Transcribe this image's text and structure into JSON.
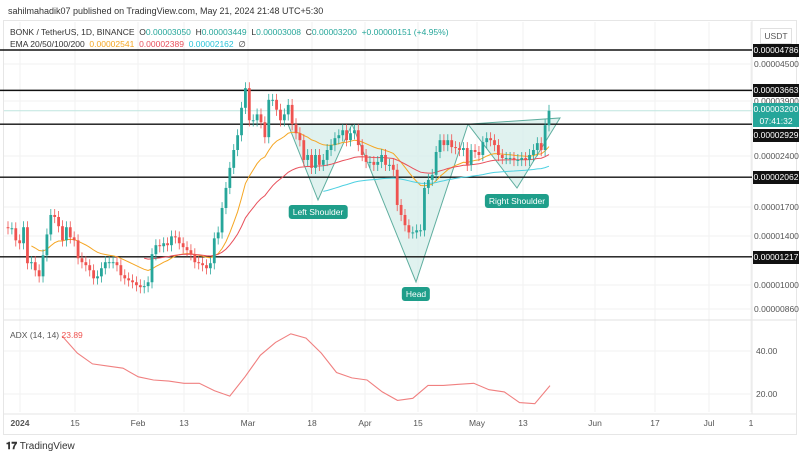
{
  "header": {
    "published": "sahilmahadik07 published on TradingView.com, May 21, 2024 21:48 UTC+5:30"
  },
  "legend": {
    "symbol": "BONK / TetherUS, 1D, BINANCE",
    "open_label": "O",
    "open": "0.00003050",
    "high_label": "H",
    "high": "0.00003449",
    "low_label": "L",
    "low": "0.00003008",
    "close_label": "C",
    "close": "0.00003200",
    "change": "+0.00000151 (+4.95%)",
    "ema_label": "EMA 20/50/100/200",
    "ema20": "0.00002541",
    "ema50": "0.00002389",
    "ema100": "0.00002162",
    "ema200": "∅"
  },
  "colors": {
    "up": "#26a69a",
    "down": "#ef5350",
    "ema20": "#f5a623",
    "ema50": "#e8505b",
    "ema100": "#4dd0e1",
    "adx": "#f08080",
    "pattern_fill": "#d5ede9",
    "pattern_line": "#5fae9f"
  },
  "price_axis": {
    "currency": "USDT",
    "ticks": [
      "0.00004500",
      "0.00003900",
      "0.00002400",
      "0.00001700",
      "0.00001400",
      "0.00001000",
      "0.00000860"
    ],
    "current_price": "0.00003200",
    "countdown": "07:41:32",
    "levels": [
      "0.00004786",
      "0.00003663",
      "0.00002929",
      "0.00002062",
      "0.00001217"
    ]
  },
  "pattern": {
    "left_shoulder": "Left Shoulder",
    "head": "Head",
    "right_shoulder": "Right Shoulder"
  },
  "time_axis": [
    "2024",
    "15",
    "Feb",
    "13",
    "Mar",
    "18",
    "Apr",
    "15",
    "May",
    "13",
    "Jun",
    "17",
    "Jul",
    "1"
  ],
  "adx": {
    "label": "ADX (14, 14)",
    "value": "23.89",
    "ticks": [
      "40.00",
      "20.00"
    ]
  },
  "footer": {
    "brand": "TradingView"
  },
  "chart_data": {
    "type": "candlestick",
    "scale": "log",
    "first_open": 1.48e-05,
    "closes": [
      1.47e-05,
      1.47e-05,
      1.357e-05,
      1.331e-05,
      1.48e-05,
      1.166e-05,
      1.174e-05,
      1.113e-05,
      1.069e-05,
      1.229e-05,
      1.411e-05,
      1.605e-05,
      1.584e-05,
      1.49e-05,
      1.357e-05,
      1.48e-05,
      1.384e-05,
      1.357e-05,
      1.205e-05,
      1.174e-05,
      1.151e-05,
      1.113e-05,
      1.055e-05,
      1.069e-05,
      1.128e-05,
      1.174e-05,
      1.174e-05,
      1.174e-05,
      1.151e-05,
      1.077e-05,
      1.055e-05,
      1.041e-05,
      1.028e-05,
      1.008e-05,
      9.95e-06,
      1.002e-05,
      1.028e-05,
      1.238e-05,
      1.314e-05,
      1.305e-05,
      1.331e-05,
      1.314e-05,
      1.393e-05,
      1.384e-05,
      1.331e-05,
      1.297e-05,
      1.271e-05,
      1.238e-05,
      1.174e-05,
      1.166e-05,
      1.151e-05,
      1.128e-05,
      1.166e-05,
      1.375e-05,
      1.43e-05,
      1.681e-05,
      1.92e-05,
      2.193e-05,
      2.468e-05,
      2.722e-05,
      3.264e-05,
      3.717e-05,
      3.005e-05,
      3.005e-05,
      3.125e-05,
      2.966e-05,
      2.687e-05,
      3.441e-05,
      3.441e-05,
      3.223e-05,
      3.005e-05,
      3.125e-05,
      3.327e-05,
      2.928e-05,
      2.758e-05,
      2.634e-05,
      2.311e-05,
      2.388e-05,
      2.193e-05,
      2.388e-05,
      2.237e-05,
      2.311e-05,
      2.468e-05,
      2.55e-05,
      2.669e-05,
      2.722e-05,
      2.813e-05,
      2.634e-05,
      2.758e-05,
      2.813e-05,
      2.55e-05,
      2.388e-05,
      2.281e-05,
      2.281e-05,
      2.237e-05,
      2.281e-05,
      2.388e-05,
      2.237e-05,
      2.237e-05,
      2.165e-05,
      1.715e-05,
      1.605e-05,
      1.5e-05,
      1.43e-05,
      1.43e-05,
      1.45e-05,
      1.45e-05,
      1.92e-05,
      2.025e-05,
      2.094e-05,
      2.436e-05,
      2.634e-05,
      2.55e-05,
      2.634e-05,
      2.516e-05,
      2.5e-05,
      2.468e-05,
      2.5e-05,
      2.237e-05,
      2.468e-05,
      2.436e-05,
      2.388e-05,
      2.6e-05,
      2.669e-05,
      2.634e-05,
      2.55e-05,
      2.388e-05,
      2.341e-05,
      2.341e-05,
      2.341e-05,
      2.311e-05,
      2.311e-05,
      2.341e-05,
      2.311e-05,
      2.388e-05,
      2.468e-05,
      2.583e-05,
      2.468e-05,
      2.909e-05,
      3.2e-05
    ],
    "ema_periods": [
      20,
      50,
      100
    ],
    "horizontal_levels": [
      4.786e-05,
      3.663e-05,
      2.929e-05,
      2.062e-05,
      1.217e-05
    ],
    "adx_values": [
      47,
      39,
      34,
      33,
      32,
      28,
      26.5,
      26,
      25,
      25,
      21.5,
      19,
      28,
      38,
      44,
      48,
      46,
      39,
      30,
      27.5,
      26.5,
      21,
      17,
      18,
      24,
      24,
      24.5,
      25,
      22,
      21,
      16,
      15.5,
      23.89
    ],
    "adx_ylim": [
      10,
      52
    ]
  }
}
